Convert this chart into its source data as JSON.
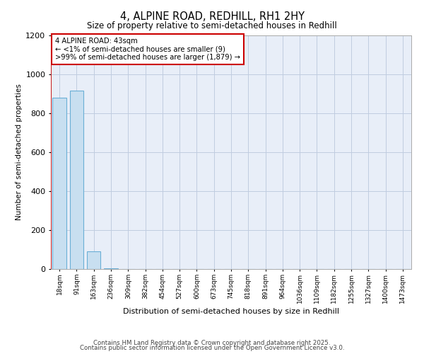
{
  "title1": "4, ALPINE ROAD, REDHILL, RH1 2HY",
  "title2": "Size of property relative to semi-detached houses in Redhill",
  "xlabel": "Distribution of semi-detached houses by size in Redhill",
  "ylabel": "Number of semi-detached properties",
  "bar_labels": [
    "18sqm",
    "91sqm",
    "163sqm",
    "236sqm",
    "309sqm",
    "382sqm",
    "454sqm",
    "527sqm",
    "600sqm",
    "673sqm",
    "745sqm",
    "818sqm",
    "891sqm",
    "964sqm",
    "1036sqm",
    "1109sqm",
    "1182sqm",
    "1255sqm",
    "1327sqm",
    "1400sqm",
    "1473sqm"
  ],
  "bar_values": [
    880,
    915,
    90,
    5,
    0,
    0,
    0,
    0,
    0,
    0,
    0,
    0,
    0,
    0,
    0,
    0,
    0,
    0,
    0,
    0,
    0
  ],
  "bar_color": "#c8dff0",
  "bar_edgecolor": "#6aafd6",
  "redline_x": -0.5,
  "annotation_text": "4 ALPINE ROAD: 43sqm\n← <1% of semi-detached houses are smaller (9)\n>99% of semi-detached houses are larger (1,879) →",
  "annotation_box_color": "#cc0000",
  "ylim": [
    0,
    1200
  ],
  "yticks": [
    0,
    200,
    400,
    600,
    800,
    1000,
    1200
  ],
  "background_color": "#e8eef8",
  "grid_color": "#c0cce0",
  "footer1": "Contains HM Land Registry data © Crown copyright and database right 2025.",
  "footer2": "Contains public sector information licensed under the Open Government Licence v3.0."
}
